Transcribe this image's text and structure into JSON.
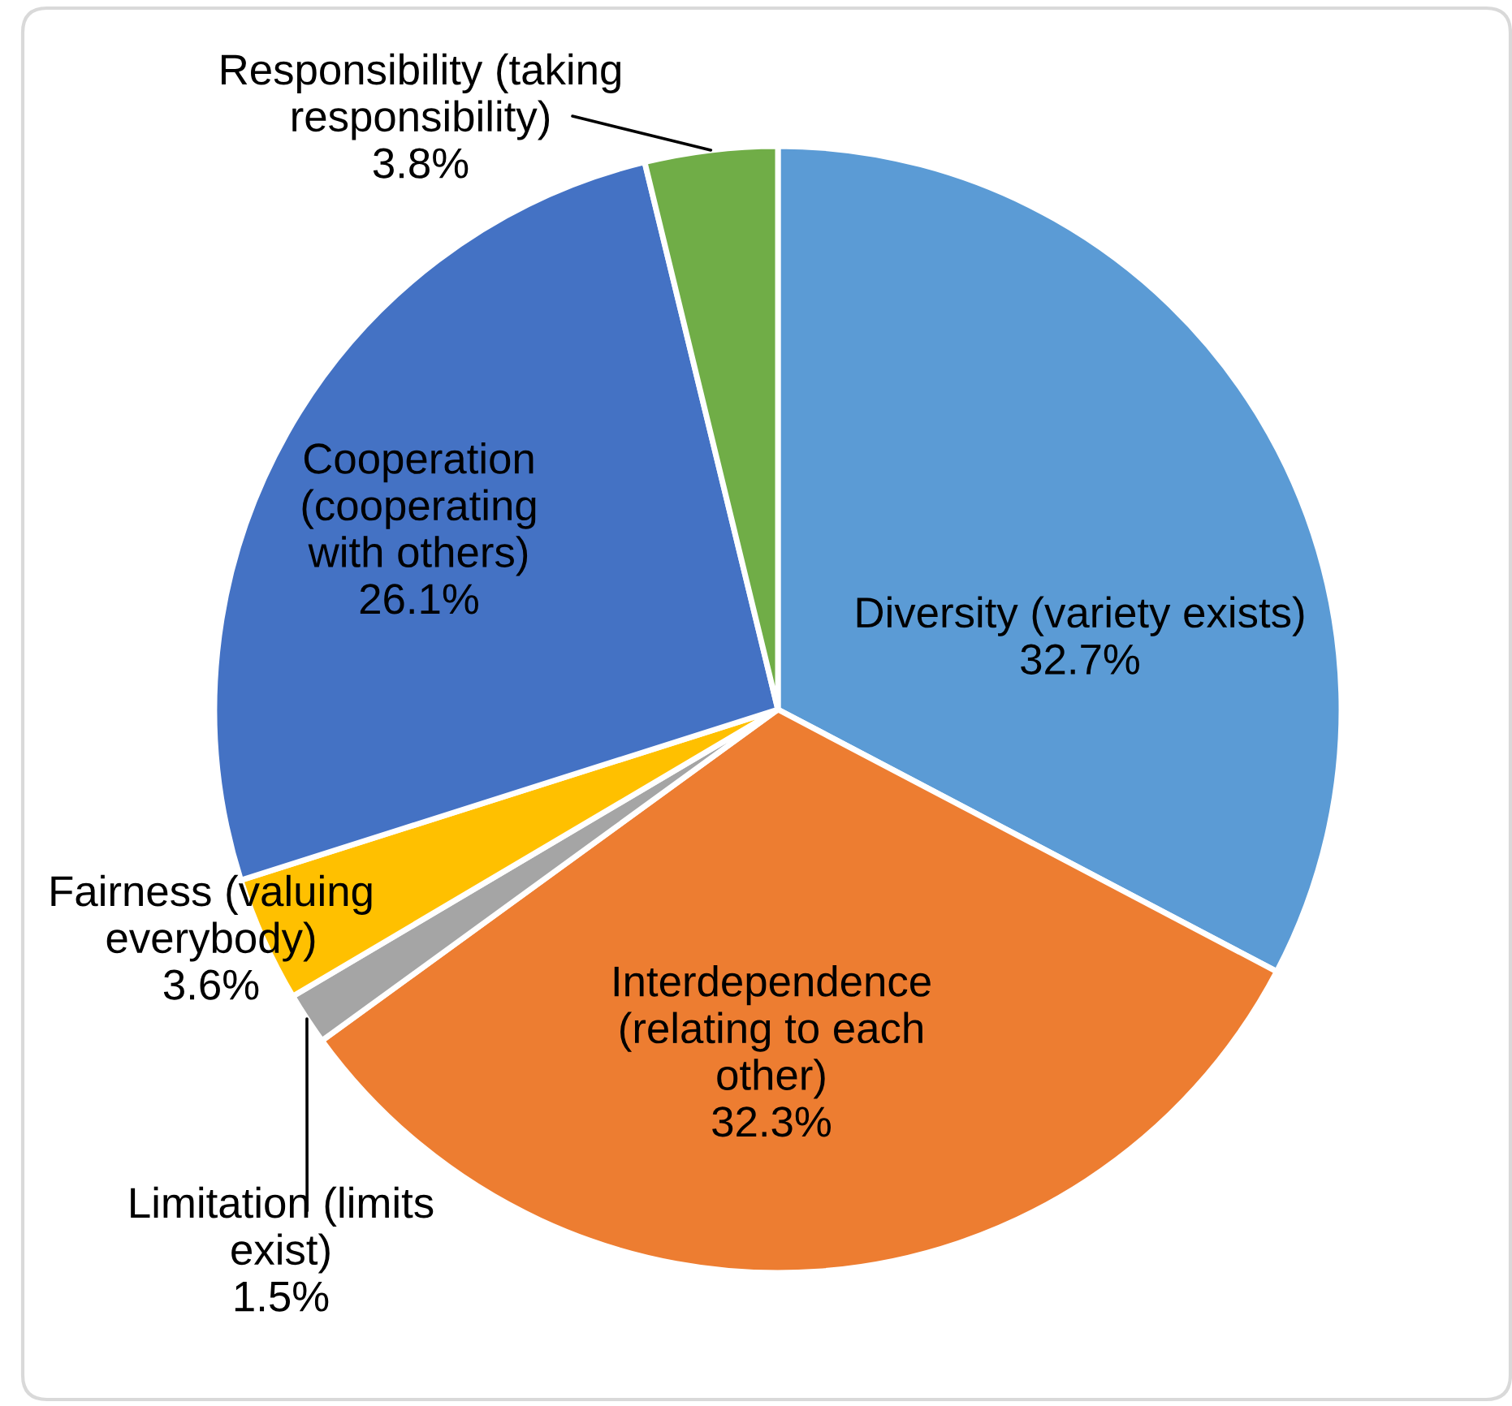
{
  "chart_data": {
    "type": "pie",
    "categories": [
      "Diversity (variety exists)",
      "Interdependence (relating to each other)",
      "Limitation (limits exist)",
      "Fairness (valuing everybody)",
      "Cooperation (cooperating with others)",
      "Responsibility (taking responsibility)"
    ],
    "values": [
      32.7,
      32.3,
      1.5,
      3.6,
      26.1,
      3.8
    ],
    "colors": [
      "#5b9bd5",
      "#ed7d31",
      "#a5a5a5",
      "#ffc000",
      "#4472c4",
      "#70ad47"
    ],
    "value_labels": [
      "32.7%",
      "32.3%",
      "1.5%",
      "3.6%",
      "26.1%",
      "3.8%"
    ]
  }
}
